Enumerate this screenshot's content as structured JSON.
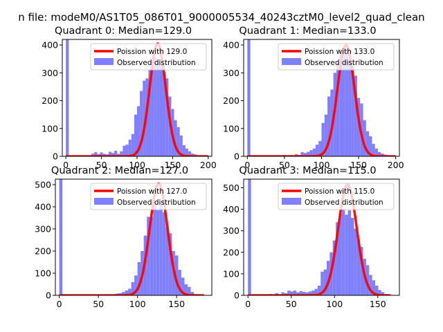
{
  "suptitle": "n file: modeM0/AS1T05_086T01_9000005534_40243cztM0_level2_quad_clean",
  "legend_labels": {
    "poisson_prefix": "Poission with ",
    "observed": "Observed distribution"
  },
  "colors": {
    "poisson": "#ff0000",
    "hist": "#8080ff",
    "axis": "#000000"
  },
  "chart_data": [
    {
      "type": "bar",
      "title": "Quadrant 0: Median=129.0",
      "median": 129.0,
      "legend_location": "upper right",
      "xlim": [
        -5,
        205
      ],
      "ylim": [
        0,
        420
      ],
      "xticks": [
        0,
        50,
        100,
        150,
        200
      ],
      "yticks": [
        0,
        100,
        200,
        300,
        400
      ],
      "bin_width": 4,
      "bins": [
        {
          "x": 0,
          "count": 420
        },
        {
          "x": 8,
          "count": 2
        },
        {
          "x": 16,
          "count": 2
        },
        {
          "x": 24,
          "count": 3
        },
        {
          "x": 32,
          "count": 2
        },
        {
          "x": 36,
          "count": 10
        },
        {
          "x": 40,
          "count": 15
        },
        {
          "x": 44,
          "count": 8
        },
        {
          "x": 48,
          "count": 14
        },
        {
          "x": 52,
          "count": 9
        },
        {
          "x": 56,
          "count": 7
        },
        {
          "x": 60,
          "count": 16
        },
        {
          "x": 64,
          "count": 12
        },
        {
          "x": 68,
          "count": 20
        },
        {
          "x": 72,
          "count": 9
        },
        {
          "x": 76,
          "count": 18
        },
        {
          "x": 80,
          "count": 38
        },
        {
          "x": 84,
          "count": 42
        },
        {
          "x": 88,
          "count": 60
        },
        {
          "x": 92,
          "count": 80
        },
        {
          "x": 96,
          "count": 150
        },
        {
          "x": 100,
          "count": 180
        },
        {
          "x": 104,
          "count": 235
        },
        {
          "x": 108,
          "count": 272
        },
        {
          "x": 112,
          "count": 280
        },
        {
          "x": 116,
          "count": 310
        },
        {
          "x": 120,
          "count": 340
        },
        {
          "x": 124,
          "count": 355
        },
        {
          "x": 128,
          "count": 345
        },
        {
          "x": 132,
          "count": 335
        },
        {
          "x": 136,
          "count": 300
        },
        {
          "x": 140,
          "count": 280
        },
        {
          "x": 144,
          "count": 215
        },
        {
          "x": 148,
          "count": 170
        },
        {
          "x": 152,
          "count": 130
        },
        {
          "x": 156,
          "count": 105
        },
        {
          "x": 160,
          "count": 75
        },
        {
          "x": 164,
          "count": 40
        },
        {
          "x": 168,
          "count": 28
        },
        {
          "x": 172,
          "count": 18
        },
        {
          "x": 176,
          "count": 10
        },
        {
          "x": 180,
          "count": 7
        },
        {
          "x": 184,
          "count": 4
        },
        {
          "x": 188,
          "count": 2
        },
        {
          "x": 192,
          "count": 1
        }
      ],
      "poisson": {
        "mean": 129.0,
        "peak": 405,
        "x_range": [
          0,
          200
        ]
      }
    },
    {
      "type": "bar",
      "title": "Quadrant 1: Median=133.0",
      "median": 133.0,
      "legend_location": "upper right",
      "xlim": [
        -5,
        205
      ],
      "ylim": [
        0,
        420
      ],
      "xticks": [
        0,
        50,
        100,
        150,
        200
      ],
      "yticks": [
        0,
        100,
        200,
        300,
        400
      ],
      "bin_width": 4,
      "bins": [
        {
          "x": 0,
          "count": 420
        },
        {
          "x": 12,
          "count": 2
        },
        {
          "x": 20,
          "count": 2
        },
        {
          "x": 28,
          "count": 3
        },
        {
          "x": 40,
          "count": 4
        },
        {
          "x": 48,
          "count": 5
        },
        {
          "x": 56,
          "count": 4
        },
        {
          "x": 64,
          "count": 8
        },
        {
          "x": 68,
          "count": 5
        },
        {
          "x": 72,
          "count": 15
        },
        {
          "x": 76,
          "count": 12
        },
        {
          "x": 80,
          "count": 16
        },
        {
          "x": 84,
          "count": 22
        },
        {
          "x": 88,
          "count": 28
        },
        {
          "x": 92,
          "count": 42
        },
        {
          "x": 96,
          "count": 55
        },
        {
          "x": 100,
          "count": 120
        },
        {
          "x": 104,
          "count": 150
        },
        {
          "x": 108,
          "count": 215
        },
        {
          "x": 112,
          "count": 240
        },
        {
          "x": 116,
          "count": 300
        },
        {
          "x": 120,
          "count": 340
        },
        {
          "x": 124,
          "count": 365
        },
        {
          "x": 128,
          "count": 375
        },
        {
          "x": 132,
          "count": 380
        },
        {
          "x": 136,
          "count": 345
        },
        {
          "x": 140,
          "count": 320
        },
        {
          "x": 144,
          "count": 290
        },
        {
          "x": 148,
          "count": 210
        },
        {
          "x": 152,
          "count": 190
        },
        {
          "x": 156,
          "count": 130
        },
        {
          "x": 160,
          "count": 90
        },
        {
          "x": 164,
          "count": 72
        },
        {
          "x": 168,
          "count": 45
        },
        {
          "x": 172,
          "count": 28
        },
        {
          "x": 176,
          "count": 15
        },
        {
          "x": 180,
          "count": 10
        },
        {
          "x": 184,
          "count": 6
        },
        {
          "x": 188,
          "count": 3
        },
        {
          "x": 192,
          "count": 2
        }
      ],
      "poisson": {
        "mean": 133.0,
        "peak": 400,
        "x_range": [
          0,
          200
        ]
      }
    },
    {
      "type": "bar",
      "title": "Quadrant 2: Median=127.0",
      "median": 127.0,
      "legend_location": "upper right",
      "xlim": [
        -5,
        195
      ],
      "ylim": [
        0,
        525
      ],
      "xticks": [
        0,
        50,
        100,
        150
      ],
      "yticks": [
        0,
        100,
        200,
        300,
        400,
        500
      ],
      "bin_width": 4,
      "bins": [
        {
          "x": 0,
          "count": 525
        },
        {
          "x": 20,
          "count": 2
        },
        {
          "x": 32,
          "count": 2
        },
        {
          "x": 48,
          "count": 3
        },
        {
          "x": 60,
          "count": 4
        },
        {
          "x": 68,
          "count": 5
        },
        {
          "x": 72,
          "count": 8
        },
        {
          "x": 76,
          "count": 10
        },
        {
          "x": 80,
          "count": 15
        },
        {
          "x": 84,
          "count": 22
        },
        {
          "x": 88,
          "count": 30
        },
        {
          "x": 92,
          "count": 60
        },
        {
          "x": 96,
          "count": 90
        },
        {
          "x": 100,
          "count": 150
        },
        {
          "x": 104,
          "count": 200
        },
        {
          "x": 108,
          "count": 270
        },
        {
          "x": 112,
          "count": 355
        },
        {
          "x": 116,
          "count": 355
        },
        {
          "x": 120,
          "count": 425
        },
        {
          "x": 124,
          "count": 385
        },
        {
          "x": 128,
          "count": 420
        },
        {
          "x": 132,
          "count": 375
        },
        {
          "x": 136,
          "count": 310
        },
        {
          "x": 140,
          "count": 280
        },
        {
          "x": 144,
          "count": 200
        },
        {
          "x": 148,
          "count": 180
        },
        {
          "x": 152,
          "count": 115
        },
        {
          "x": 156,
          "count": 80
        },
        {
          "x": 160,
          "count": 50
        },
        {
          "x": 164,
          "count": 38
        },
        {
          "x": 168,
          "count": 15
        },
        {
          "x": 172,
          "count": 6
        },
        {
          "x": 176,
          "count": 4
        },
        {
          "x": 180,
          "count": 2
        }
      ],
      "poisson": {
        "mean": 127.0,
        "peak": 505,
        "x_range": [
          0,
          185
        ]
      }
    },
    {
      "type": "bar",
      "title": "Quadrant 3: Median=115.0",
      "median": 115.0,
      "legend_location": "upper right",
      "xlim": [
        -5,
        175
      ],
      "ylim": [
        0,
        540
      ],
      "xticks": [
        0,
        50,
        100,
        150
      ],
      "yticks": [
        0,
        100,
        200,
        300,
        400,
        500
      ],
      "bin_width": 3.5,
      "bins": [
        {
          "x": 0,
          "count": 540
        },
        {
          "x": 7,
          "count": 2
        },
        {
          "x": 14,
          "count": 3
        },
        {
          "x": 24.5,
          "count": 6
        },
        {
          "x": 31.5,
          "count": 10
        },
        {
          "x": 38.5,
          "count": 14
        },
        {
          "x": 42,
          "count": 10
        },
        {
          "x": 45.5,
          "count": 22
        },
        {
          "x": 49,
          "count": 18
        },
        {
          "x": 52.5,
          "count": 22
        },
        {
          "x": 56,
          "count": 14
        },
        {
          "x": 59.5,
          "count": 20
        },
        {
          "x": 63,
          "count": 16
        },
        {
          "x": 66.5,
          "count": 14
        },
        {
          "x": 70,
          "count": 18
        },
        {
          "x": 73.5,
          "count": 22
        },
        {
          "x": 77,
          "count": 30
        },
        {
          "x": 80.5,
          "count": 45
        },
        {
          "x": 84,
          "count": 110
        },
        {
          "x": 87.5,
          "count": 120
        },
        {
          "x": 91,
          "count": 160
        },
        {
          "x": 94.5,
          "count": 200
        },
        {
          "x": 98,
          "count": 255
        },
        {
          "x": 101.5,
          "count": 340
        },
        {
          "x": 105,
          "count": 380
        },
        {
          "x": 108.5,
          "count": 400
        },
        {
          "x": 112,
          "count": 375
        },
        {
          "x": 115.5,
          "count": 395
        },
        {
          "x": 119,
          "count": 360
        },
        {
          "x": 122.5,
          "count": 310
        },
        {
          "x": 126,
          "count": 260
        },
        {
          "x": 129.5,
          "count": 225
        },
        {
          "x": 133,
          "count": 170
        },
        {
          "x": 136.5,
          "count": 140
        },
        {
          "x": 140,
          "count": 95
        },
        {
          "x": 143.5,
          "count": 70
        },
        {
          "x": 147,
          "count": 45
        },
        {
          "x": 150.5,
          "count": 25
        },
        {
          "x": 154,
          "count": 15
        },
        {
          "x": 157.5,
          "count": 6
        },
        {
          "x": 161,
          "count": 3
        }
      ],
      "poisson": {
        "mean": 115.0,
        "peak": 515,
        "x_range": [
          0,
          165
        ]
      }
    }
  ]
}
